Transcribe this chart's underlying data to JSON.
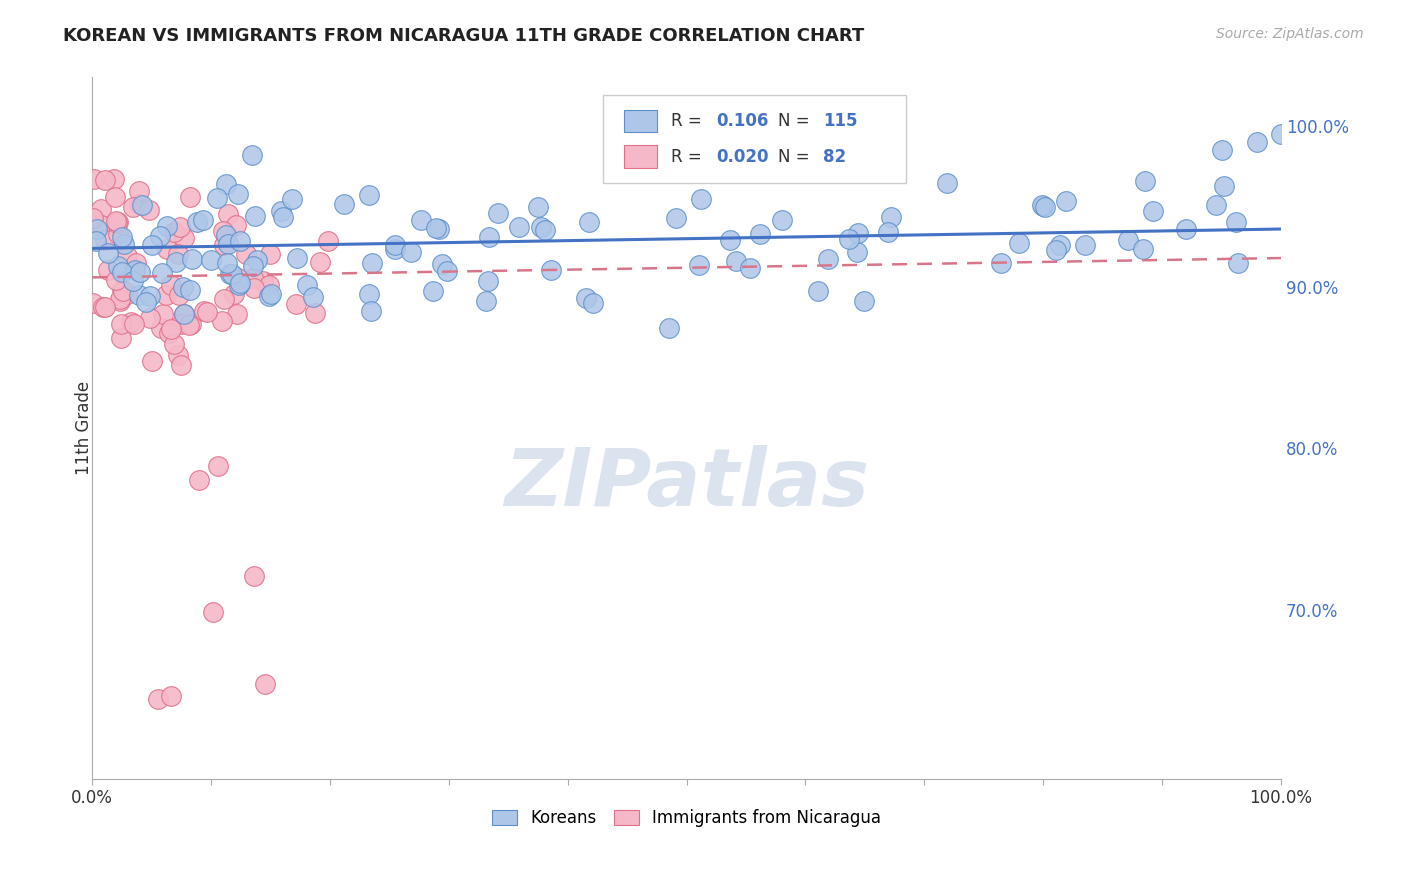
{
  "title": "KOREAN VS IMMIGRANTS FROM NICARAGUA 11TH GRADE CORRELATION CHART",
  "source": "Source: ZipAtlas.com",
  "ylabel": "11th Grade",
  "right_yticks": [
    0.7,
    0.8,
    0.9,
    1.0
  ],
  "right_yticklabels": [
    "70.0%",
    "80.0%",
    "90.0%",
    "100.0%"
  ],
  "xlim": [
    0.0,
    1.0
  ],
  "ylim": [
    0.595,
    1.03
  ],
  "korean_R": 0.106,
  "korean_N": 115,
  "nicaragua_R": 0.02,
  "nicaragua_N": 82,
  "korean_color": "#aec6e8",
  "korean_edge_color": "#5b8fc9",
  "nicaragua_color": "#f5b8c8",
  "nicaragua_edge_color": "#e0708a",
  "background_color": "#ffffff",
  "grid_color": "#dddddd",
  "watermark": "ZIPatlas",
  "watermark_color": "#ccd8e8",
  "title_fontsize": 13,
  "source_fontsize": 10,
  "legend_color": "#4472c4",
  "korean_line_color": "#4472c4",
  "nicaragua_line_color": "#d9758a",
  "xticks": [
    0.0,
    0.1,
    0.2,
    0.3,
    0.4,
    0.5,
    0.6,
    0.7,
    0.8,
    0.9,
    1.0
  ],
  "xticklabels_show": [
    "0.0%",
    "",
    "",
    "",
    "",
    "",
    "",
    "",
    "",
    "",
    "100.0%"
  ]
}
